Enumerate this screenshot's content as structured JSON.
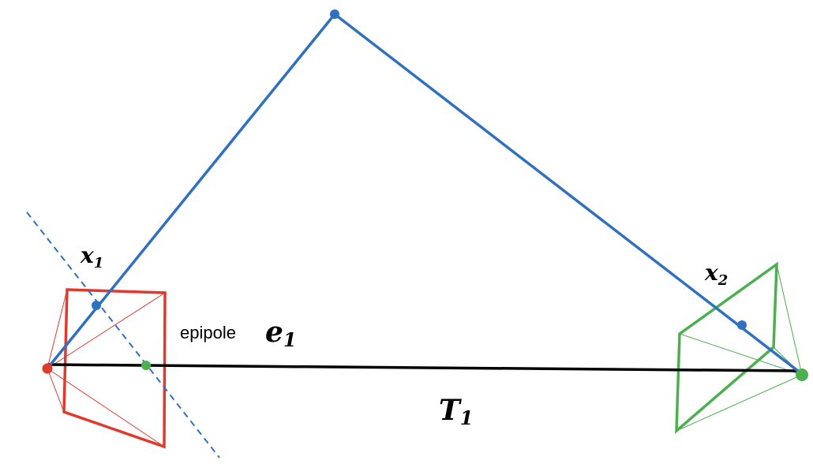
{
  "labels": {
    "x1": {
      "base": "x",
      "sub": "1"
    },
    "x2": {
      "base": "x",
      "sub": "2"
    },
    "epipole_word": "epipole",
    "e1": {
      "base": "e",
      "sub": "1"
    },
    "T1": {
      "base": "T",
      "sub": "1"
    }
  },
  "colors": {
    "ray": "#3070c0",
    "camera1": "#e03a2e",
    "camera2": "#4caf50",
    "baseline": "#000000",
    "epipolar_line": "#3070c0"
  }
}
